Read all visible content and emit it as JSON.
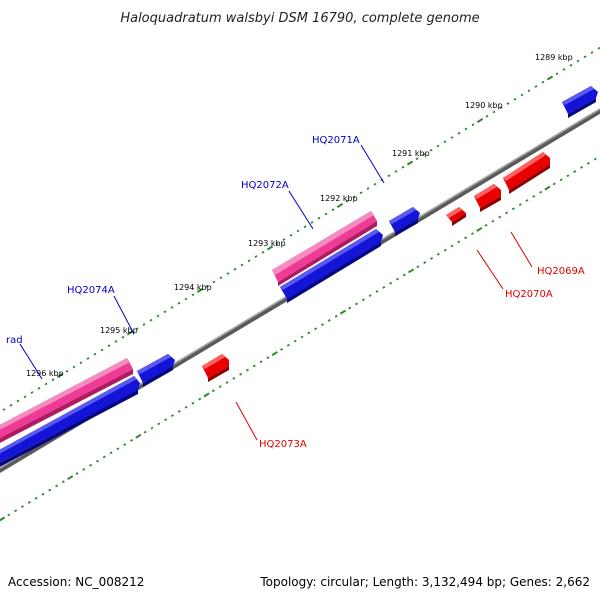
{
  "header": {
    "title": "Haloquadratum walsbyi DSM 16790, complete genome"
  },
  "footer": {
    "accession": "Accession: NC_008212",
    "summary": "Topology: circular; Length: 3,132,494 bp; Genes: 2,662"
  },
  "colors": {
    "backbone": "#7a7a7a",
    "tick": "#2a8a2a",
    "forward_gene": "#1010d0",
    "reverse_gene": "#e80000",
    "rna_feature": "#e8288a",
    "forward_label": "#0000c0",
    "reverse_label": "#dd0000"
  },
  "map": {
    "tick_labels": [
      "1289 kbp",
      "1290 kbp",
      "1291 kbp",
      "1292 kbp",
      "1293 kbp",
      "1294 kbp",
      "1295 kbp",
      "1296 kbp"
    ],
    "gene_labels": {
      "forward": [
        "HQ2071A",
        "HQ2072A",
        "HQ2074A",
        "rad"
      ],
      "reverse": [
        "HQ2069A",
        "HQ2070A",
        "HQ2073A"
      ]
    }
  }
}
